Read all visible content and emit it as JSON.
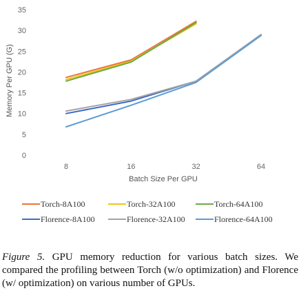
{
  "chart_data": {
    "type": "line",
    "categories": [
      "8",
      "16",
      "32",
      "64"
    ],
    "xlabel": "Batch Size Per GPU",
    "ylabel": "Memory Per GPU (G)",
    "ylim": [
      0,
      35
    ],
    "yticks": [
      "0",
      "5",
      "10",
      "15",
      "20",
      "25",
      "30",
      "35"
    ],
    "grid": false,
    "legend_position": "bottom",
    "series": [
      {
        "name": "Torch-8A100",
        "color": "#e8753a",
        "values": [
          18.7,
          22.9,
          32.2,
          null
        ]
      },
      {
        "name": "Torch-32A100",
        "color": "#f2c414",
        "values": [
          18.2,
          22.6,
          31.6,
          null
        ]
      },
      {
        "name": "Torch-64A100",
        "color": "#6aaa45",
        "values": [
          17.8,
          22.4,
          31.9,
          null
        ]
      },
      {
        "name": "Florence-8A100",
        "color": "#3d6ac4",
        "values": [
          10.0,
          13.0,
          17.8,
          29.0
        ]
      },
      {
        "name": "Florence-32A100",
        "color": "#a3a3a3",
        "values": [
          10.6,
          13.4,
          17.8,
          29.0
        ]
      },
      {
        "name": "Florence-64A100",
        "color": "#5b9bd5",
        "values": [
          6.8,
          12.0,
          17.5,
          28.8
        ]
      }
    ]
  },
  "caption": {
    "figure_label": "Figure 5.",
    "text": " GPU memory reduction for various batch sizes. We compared the profiling between Torch (w/o optimization) and Florence (w/ optimization) on various number of GPUs."
  }
}
